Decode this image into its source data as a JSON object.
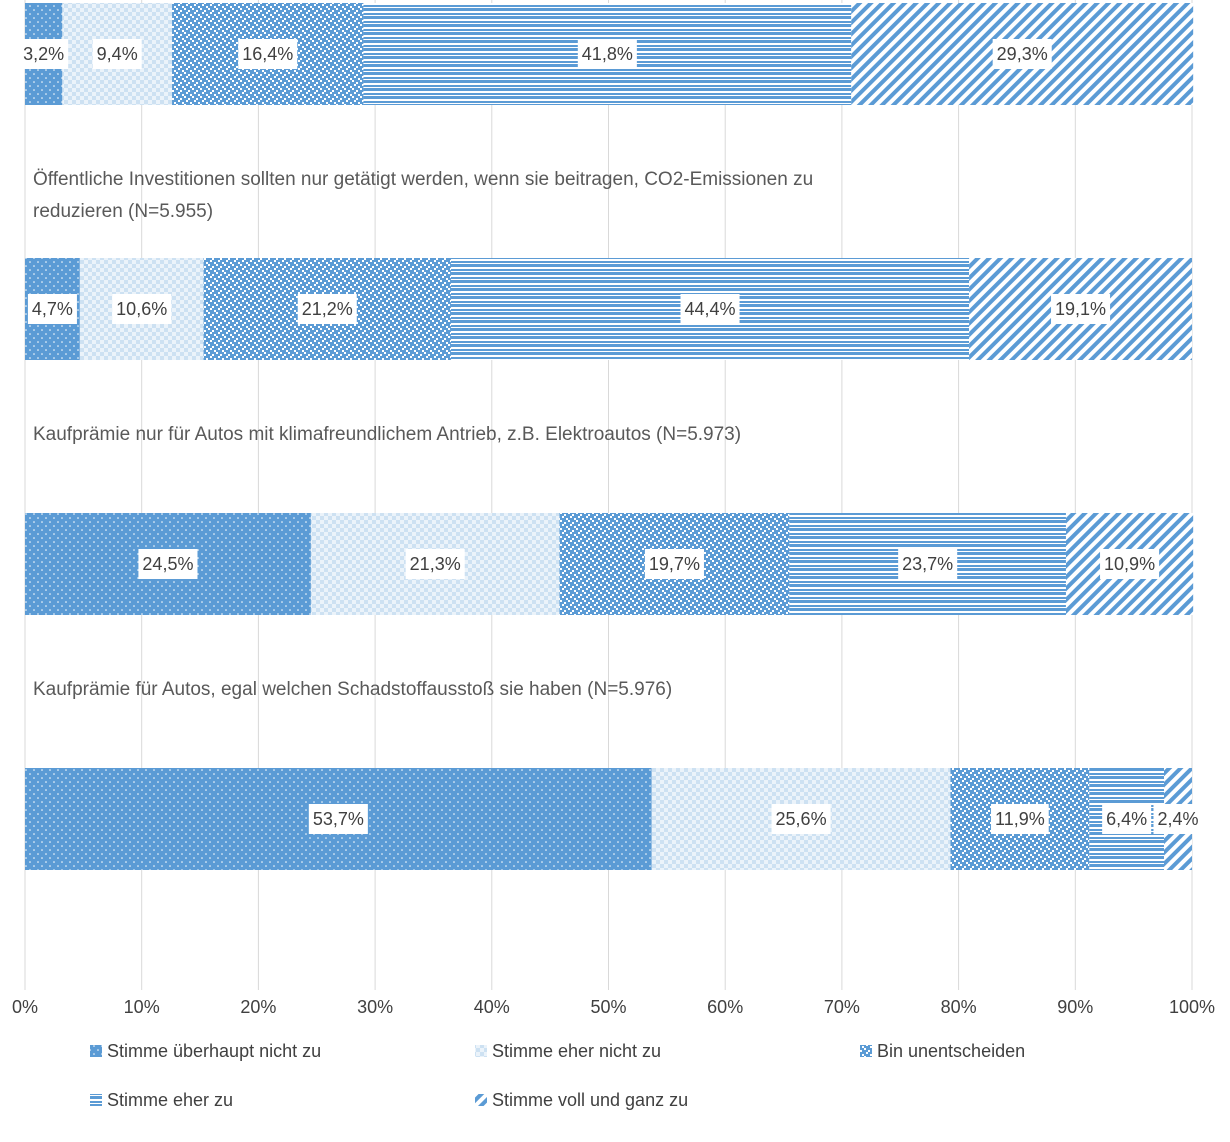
{
  "chart_data": {
    "type": "bar",
    "orientation": "horizontal",
    "stacked": true,
    "categories": [
      null,
      "Öffentliche Investitionen sollten nur getätigt werden, wenn sie beitragen, CO2-Emissionen zu reduzieren (N=5.955)",
      "Kaufprämie nur für Autos mit klimafreundlichem Antrieb, z.B. Elektroautos (N=5.973)",
      "Kaufprämie für Autos, egal welchen Schadstoffausstoß sie haben (N=5.976)"
    ],
    "series": [
      {
        "name": "Stimme überhaupt nicht zu",
        "color": "#5b9bd5",
        "pattern": "dots",
        "values": [
          3.2,
          4.7,
          24.5,
          53.7
        ],
        "value_labels": [
          "3,2%",
          "4,7%",
          "24,5%",
          "53,7%"
        ]
      },
      {
        "name": "Stimme eher nicht zu",
        "color": "#5b9bd5",
        "pattern": "light-check",
        "values": [
          9.4,
          10.6,
          21.3,
          25.6
        ],
        "value_labels": [
          "9,4%",
          "10,6%",
          "21,3%",
          "25,6%"
        ]
      },
      {
        "name": "Bin unentscheiden",
        "color": "#5b9bd5",
        "pattern": "dense-check",
        "values": [
          16.4,
          21.2,
          19.7,
          11.9
        ],
        "value_labels": [
          "16,4%",
          "21,2%",
          "19,7%",
          "11,9%"
        ]
      },
      {
        "name": "Stimme eher zu",
        "color": "#5b9bd5",
        "pattern": "horizontal",
        "values": [
          41.8,
          44.4,
          23.7,
          6.4
        ],
        "value_labels": [
          "41,8%",
          "44,4%",
          "23,7%",
          "6,4%"
        ]
      },
      {
        "name": "Stimme voll und ganz zu",
        "color": "#5b9bd5",
        "pattern": "diagonal",
        "values": [
          29.3,
          19.1,
          10.9,
          2.4
        ],
        "value_labels": [
          "29,3%",
          "19,1%",
          "10,9%",
          "2,4%"
        ]
      }
    ],
    "xlim": [
      0,
      100
    ],
    "xticks": [
      {
        "value": 0,
        "label": "0%"
      },
      {
        "value": 10,
        "label": "10%"
      },
      {
        "value": 20,
        "label": "20%"
      },
      {
        "value": 30,
        "label": "30%"
      },
      {
        "value": 40,
        "label": "40%"
      },
      {
        "value": 50,
        "label": "50%"
      },
      {
        "value": 60,
        "label": "60%"
      },
      {
        "value": 70,
        "label": "70%"
      },
      {
        "value": 80,
        "label": "80%"
      },
      {
        "value": 90,
        "label": "90%"
      },
      {
        "value": 100,
        "label": "100%"
      }
    ],
    "grid": true,
    "legend": "bottom"
  }
}
